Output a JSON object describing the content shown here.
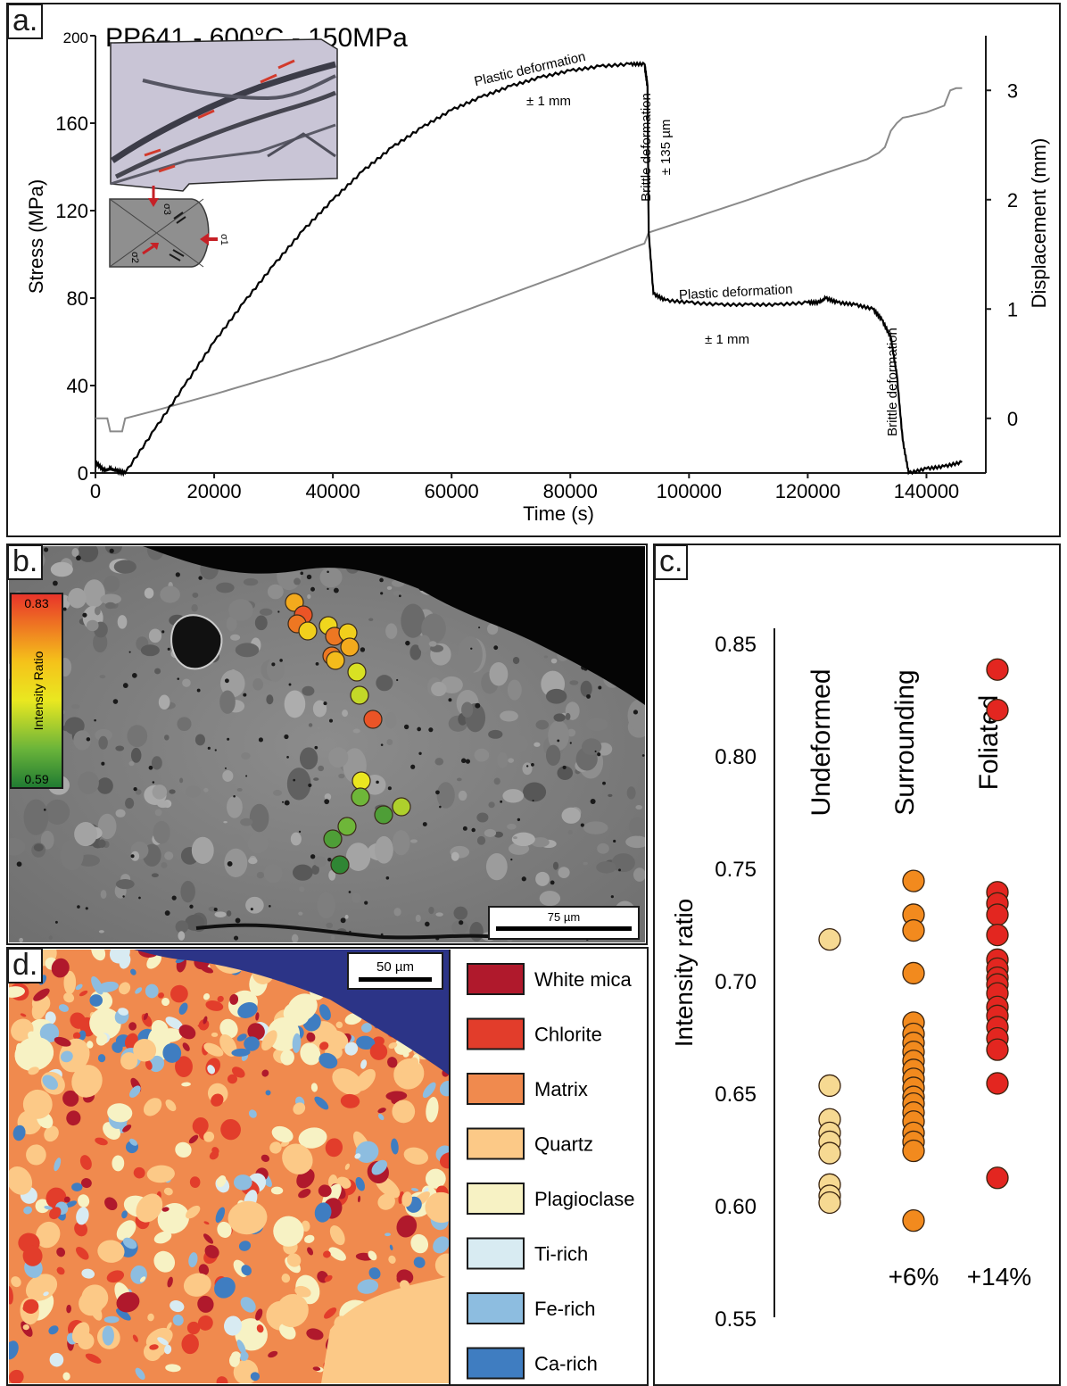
{
  "panels": {
    "a": {
      "letter": "a.",
      "title": "PP641 - 600°C - 150MPa",
      "annotations": {
        "plastic1": "Plastic deformation",
        "plastic1_amount": "± 1 mm",
        "brittle1": "Brittle deformation",
        "brittle1_amount": "± 135 µm",
        "plastic2": "Plastic deformation",
        "plastic2_amount": "± 1 mm",
        "brittle2": "Brittle deformation"
      },
      "sigma_labels": [
        "σ3",
        "σ1",
        "σ2"
      ]
    },
    "b": {
      "letter": "b.",
      "colorbar": {
        "title": "Intensity Ratio",
        "max_label": "0.83",
        "min_label": "0.59",
        "max": 0.83,
        "min": 0.59
      },
      "scalebar": "75 µm",
      "spot_values": [
        0.76,
        0.81,
        0.79,
        0.73,
        0.72,
        0.79,
        0.73,
        0.76,
        0.79,
        0.75,
        0.69,
        0.68,
        0.81,
        0.7,
        0.64,
        0.67,
        0.62,
        0.64,
        0.62,
        0.6
      ]
    },
    "c": {
      "letter": "c."
    },
    "d": {
      "letter": "d.",
      "scalebar": "50 µm",
      "legend": [
        {
          "label": "White mica",
          "color": "#b0192c"
        },
        {
          "label": "Chlorite",
          "color": "#e23d2b"
        },
        {
          "label": "Matrix",
          "color": "#f08a4e"
        },
        {
          "label": "Quartz",
          "color": "#fcc987"
        },
        {
          "label": "Plagioclase",
          "color": "#f7f2c4"
        },
        {
          "label": "Ti-rich",
          "color": "#d8ebf2"
        },
        {
          "label": "Fe-rich",
          "color": "#8dbde0"
        },
        {
          "label": "Ca-rich",
          "color": "#3f7dc1"
        }
      ]
    }
  },
  "chart_data": [
    {
      "type": "line",
      "title": "PP641 - 600°C - 150MPa",
      "xlabel": "Time (s)",
      "ylabel": "Stress (MPa)",
      "y2label": "Displacement (mm)",
      "xlim": [
        0,
        150000
      ],
      "ylim": [
        0,
        200
      ],
      "y2lim": [
        -0.5,
        3.5
      ],
      "xticks": [
        0,
        20000,
        40000,
        60000,
        80000,
        100000,
        120000,
        140000
      ],
      "yticks": [
        0,
        40,
        80,
        120,
        160,
        200
      ],
      "y2ticks": [
        0,
        1,
        2,
        3
      ],
      "series": [
        {
          "axis": "left",
          "color": "#000000",
          "x": [
            0,
            1500,
            2500,
            3500,
            5000,
            10000,
            15000,
            20000,
            25000,
            30000,
            35000,
            40000,
            45000,
            50000,
            55000,
            60000,
            65000,
            70000,
            75000,
            80000,
            85000,
            90000,
            92500,
            93000,
            93200,
            94000,
            96000,
            100000,
            105000,
            110000,
            115000,
            120000,
            122000,
            123000,
            125000,
            128000,
            131000,
            132500,
            134000,
            135000,
            136000,
            137000,
            140000,
            143000,
            146000
          ],
          "y": [
            5,
            1,
            2,
            1,
            0,
            20,
            40,
            60,
            78,
            95,
            111,
            125,
            138,
            149,
            158,
            166,
            172,
            177,
            181,
            184,
            186,
            187,
            187,
            177,
            110,
            82,
            79,
            78,
            77,
            77,
            77,
            78,
            78,
            80,
            78,
            77,
            75,
            70,
            62,
            45,
            15,
            0,
            2,
            3,
            5
          ]
        },
        {
          "axis": "right",
          "color": "#8a8a8a",
          "x": [
            0,
            2000,
            2500,
            4500,
            5000,
            10000,
            20000,
            30000,
            40000,
            50000,
            60000,
            70000,
            80000,
            90000,
            92500,
            93200,
            100000,
            110000,
            120000,
            130000,
            132000,
            133000,
            134000,
            135000,
            136000,
            137000,
            140000,
            143000,
            144000,
            145000,
            146000
          ],
          "y": [
            0,
            0,
            -0.12,
            -0.12,
            0,
            0.07,
            0.22,
            0.38,
            0.55,
            0.74,
            0.94,
            1.14,
            1.34,
            1.55,
            1.6,
            1.7,
            1.82,
            2.0,
            2.19,
            2.37,
            2.43,
            2.48,
            2.63,
            2.7,
            2.75,
            2.76,
            2.8,
            2.86,
            3.0,
            3.02,
            3.02
          ]
        }
      ],
      "annotations": [
        "Plastic deformation",
        "± 1 mm",
        "Brittle deformation",
        "± 135 µm",
        "Plastic deformation",
        "± 1 mm",
        "Brittle deformation"
      ]
    },
    {
      "type": "scatter",
      "xlabel": "",
      "ylabel": "Intensity ratio",
      "ylim": [
        0.55,
        0.85
      ],
      "yticks": [
        0.55,
        0.6,
        0.65,
        0.7,
        0.75,
        0.8,
        0.85
      ],
      "categories": [
        "Undeformed",
        "Surrounding",
        "Foliated"
      ],
      "category_notes": [
        "",
        "+6%",
        "+14%"
      ],
      "series": [
        {
          "name": "Undeformed",
          "color": "#f6d992",
          "values": [
            0.718,
            0.653,
            0.638,
            0.632,
            0.628,
            0.623,
            0.609,
            0.604,
            0.601
          ]
        },
        {
          "name": "Surrounding",
          "color": "#f28a1e",
          "values": [
            0.744,
            0.729,
            0.722,
            0.703,
            0.681,
            0.676,
            0.672,
            0.668,
            0.664,
            0.66,
            0.656,
            0.652,
            0.648,
            0.645,
            0.641,
            0.637,
            0.632,
            0.628,
            0.624,
            0.593
          ]
        },
        {
          "name": "Foliated",
          "color": "#e32620",
          "values": [
            0.838,
            0.82,
            0.739,
            0.734,
            0.729,
            0.72,
            0.709,
            0.705,
            0.701,
            0.698,
            0.694,
            0.688,
            0.684,
            0.679,
            0.674,
            0.669,
            0.654,
            0.612
          ]
        }
      ]
    }
  ]
}
